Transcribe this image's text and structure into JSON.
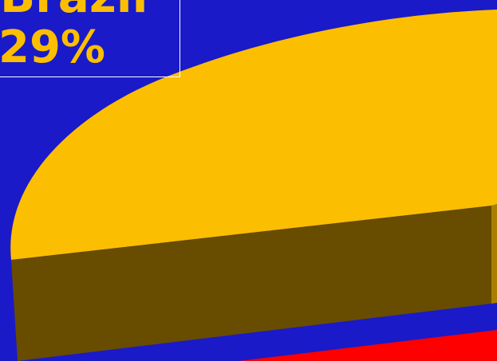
{
  "chart_data": {
    "type": "pie",
    "style": "3d",
    "slices": [
      {
        "label": "Brazil",
        "value": 29,
        "value_label": "29%",
        "color": "#fcbe00"
      },
      {
        "label": "",
        "value": null,
        "value_label": "",
        "color": "#ff0000"
      }
    ],
    "background": "#1a1ac8",
    "label_color": "#fcbe00",
    "label_border_color": "#ffffff"
  }
}
